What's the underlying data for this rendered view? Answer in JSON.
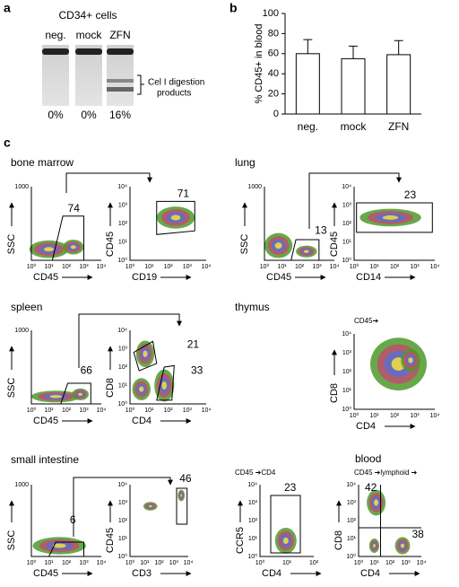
{
  "panel_a": {
    "label": "a",
    "title": "CD34+ cells",
    "lanes": [
      "neg.",
      "mock",
      "ZFN"
    ],
    "percents": [
      "0%",
      "0%",
      "16%"
    ],
    "annotation": [
      "Cel I digestion",
      "products"
    ]
  },
  "chart_data": {
    "type": "bar",
    "label": "b",
    "ylabel": "% CD45+ in blood",
    "categories": [
      "neg.",
      "mock",
      "ZFN"
    ],
    "values": [
      60,
      55,
      59
    ],
    "errors": [
      14,
      12.5,
      14
    ],
    "color": "#ffffff",
    "ylim": [
      0,
      100
    ],
    "yticks": [
      0,
      20,
      40,
      60,
      80,
      100
    ]
  },
  "panel_c": {
    "label": "c",
    "tissues": [
      "bone marrow",
      "lung",
      "spleen",
      "thymus",
      "small intestine",
      "blood"
    ],
    "plots": [
      {
        "xlabel": "CD45",
        "ylabel": "SSC",
        "xticks": [
          "10⁰",
          "10¹",
          "10²",
          "10³",
          "10⁴"
        ],
        "yticks": [
          "1000"
        ],
        "gates": [
          "74"
        ]
      },
      {
        "xlabel": "CD19",
        "ylabel": "CD45",
        "xticks": [
          "10⁰",
          "10¹",
          "10²",
          "10³",
          "10⁴"
        ],
        "yticks": [
          "10⁰",
          "10¹",
          "10²",
          "10³",
          "10⁴"
        ],
        "gates": [
          "71"
        ]
      },
      {
        "xlabel": "CD45",
        "ylabel": "SSC",
        "xticks": [
          "10⁰",
          "10¹",
          "10²",
          "10³",
          "10⁴"
        ],
        "yticks": [
          "1000"
        ],
        "gates": [
          "13"
        ]
      },
      {
        "xlabel": "CD14",
        "ylabel": "CD45",
        "xticks": [
          "10⁰",
          "10¹",
          "10²",
          "10³",
          "10⁴"
        ],
        "yticks": [
          "10⁰",
          "10¹",
          "10²",
          "10³",
          "10⁴"
        ],
        "gates": [
          "23"
        ]
      },
      {
        "xlabel": "CD45",
        "ylabel": "SSC",
        "xticks": [
          "10⁰",
          "10¹",
          "10²",
          "10³",
          "10⁴"
        ],
        "yticks": [
          "1000"
        ],
        "gates": [
          "66"
        ]
      },
      {
        "xlabel": "CD4",
        "ylabel": "CD8",
        "xticks": [
          "10⁰",
          "10¹",
          "10²",
          "10³",
          "10⁴"
        ],
        "yticks": [
          "10⁰",
          "10¹",
          "10²",
          "10³",
          "10⁴"
        ],
        "gates": [
          "21",
          "33"
        ]
      },
      {
        "header": "CD45➔",
        "xlabel": "CD4",
        "ylabel": "CD8",
        "xticks": [
          "10⁰",
          "10¹",
          "10²",
          "10³",
          "10⁴"
        ],
        "yticks": [
          "10⁰",
          "10¹",
          "10²",
          "10³",
          "10⁴"
        ],
        "gates": []
      },
      {
        "xlabel": "CD45",
        "ylabel": "SSC",
        "xticks": [
          "10⁰",
          "10¹",
          "10²",
          "10³",
          "10⁴"
        ],
        "yticks": [
          "1000"
        ],
        "gates": [
          "6"
        ]
      },
      {
        "xlabel": "CD3",
        "ylabel": "CD45",
        "xticks": [
          "10⁰",
          "10¹",
          "10²",
          "10³",
          "10⁴"
        ],
        "yticks": [
          "10⁰",
          "10¹",
          "10²",
          "10³",
          "10⁴"
        ],
        "gates": [
          "46"
        ]
      },
      {
        "header": "CD45 ➔CD4",
        "xlabel": "CD4",
        "ylabel": "CCR5",
        "xticks": [
          "10⁰",
          "10¹",
          "10²"
        ],
        "yticks": [
          "10⁰",
          "10¹",
          "10²",
          "10³",
          "10⁴"
        ],
        "gates": [
          "23"
        ]
      },
      {
        "header": "CD45 ➔lymphoid ➔",
        "xlabel": "CD4",
        "ylabel": "CD8",
        "xticks": [
          "10⁰",
          "10¹",
          "10²",
          "10³",
          "10⁴"
        ],
        "yticks": [
          "10⁰",
          "10¹",
          "10²",
          "10³",
          "10⁴"
        ],
        "gates": [
          "42",
          "38"
        ]
      }
    ]
  }
}
